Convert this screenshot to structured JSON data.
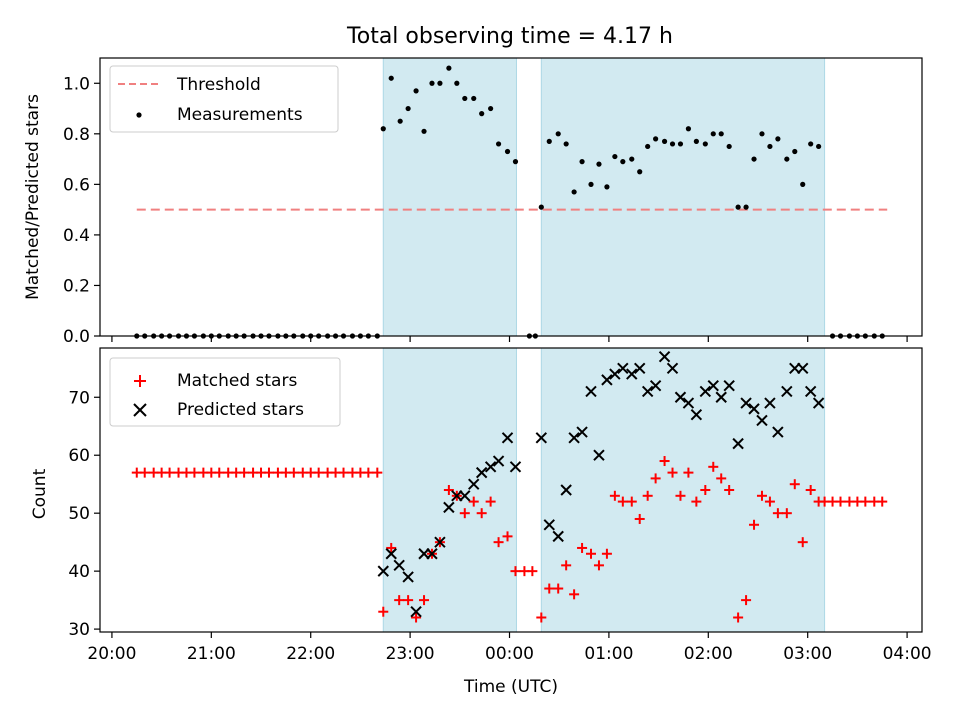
{
  "title": "Total observing time = 4.17 h",
  "xlabel": "Time (UTC)",
  "x_tick_labels": [
    "20:00",
    "21:00",
    "22:00",
    "23:00",
    "00:00",
    "01:00",
    "02:00",
    "03:00",
    "04:00"
  ],
  "colors": {
    "band": "#add8e6",
    "threshold": "#f08080",
    "matched": "#ff0000",
    "predicted": "#000000",
    "measurements": "#000000"
  },
  "chart_data": [
    {
      "type": "scatter",
      "ylabel": "Matched/Predicted stars",
      "xlim": [
        19.88,
        28.15
      ],
      "ylim": [
        0,
        1.1
      ],
      "y_ticks": [
        "0.0",
        "0.2",
        "0.4",
        "0.6",
        "0.8",
        "1.0"
      ],
      "legend": {
        "placement": "top-left",
        "entries": [
          "Threshold",
          "Measurements"
        ]
      },
      "shaded_intervals_hours": [
        [
          22.73,
          24.07
        ],
        [
          24.32,
          27.17
        ]
      ],
      "threshold": {
        "name": "Threshold",
        "x": [
          20.25,
          27.8
        ],
        "y": 0.5
      },
      "measurements": {
        "name": "Measurements",
        "x": [
          20.25,
          20.33,
          20.42,
          20.5,
          20.58,
          20.67,
          20.75,
          20.83,
          20.92,
          21.0,
          21.08,
          21.17,
          21.25,
          21.33,
          21.42,
          21.5,
          21.58,
          21.67,
          21.75,
          21.83,
          21.92,
          22.0,
          22.08,
          22.17,
          22.25,
          22.33,
          22.42,
          22.5,
          22.58,
          22.67,
          22.73,
          22.81,
          22.9,
          22.98,
          23.06,
          23.14,
          23.22,
          23.3,
          23.39,
          23.47,
          23.55,
          23.64,
          23.72,
          23.81,
          23.89,
          23.98,
          24.06,
          24.2,
          24.26,
          24.32,
          24.4,
          24.49,
          24.57,
          24.65,
          24.73,
          24.82,
          24.9,
          24.98,
          25.06,
          25.14,
          25.23,
          25.31,
          25.39,
          25.47,
          25.56,
          25.64,
          25.72,
          25.8,
          25.88,
          25.97,
          26.05,
          26.13,
          26.21,
          26.3,
          26.38,
          26.46,
          26.54,
          26.62,
          26.7,
          26.79,
          26.87,
          26.95,
          27.03,
          27.11,
          27.25,
          27.33,
          27.42,
          27.5,
          27.58,
          27.67,
          27.75
        ],
        "y": [
          0,
          0,
          0,
          0,
          0,
          0,
          0,
          0,
          0,
          0,
          0,
          0,
          0,
          0,
          0,
          0,
          0,
          0,
          0,
          0,
          0,
          0,
          0,
          0,
          0,
          0,
          0,
          0,
          0,
          0,
          0.82,
          1.02,
          0.85,
          0.9,
          0.97,
          0.81,
          1.0,
          1.0,
          1.06,
          1.0,
          0.94,
          0.94,
          0.88,
          0.9,
          0.76,
          0.73,
          0.69,
          0,
          0,
          0.51,
          0.77,
          0.8,
          0.76,
          0.57,
          0.69,
          0.6,
          0.68,
          0.59,
          0.71,
          0.69,
          0.7,
          0.65,
          0.75,
          0.78,
          0.77,
          0.76,
          0.76,
          0.82,
          0.77,
          0.76,
          0.8,
          0.8,
          0.75,
          0.51,
          0.51,
          0.7,
          0.8,
          0.75,
          0.78,
          0.7,
          0.73,
          0.6,
          0.76,
          0.75,
          0,
          0,
          0,
          0,
          0,
          0,
          0
        ]
      }
    },
    {
      "type": "scatter",
      "ylabel": "Count",
      "xlim": [
        19.88,
        28.15
      ],
      "ylim": [
        29.5,
        78.5
      ],
      "y_ticks": [
        "30",
        "40",
        "50",
        "60",
        "70"
      ],
      "legend": {
        "placement": "top-left",
        "entries": [
          "Matched stars",
          "Predicted stars"
        ]
      },
      "shaded_intervals_hours": [
        [
          22.73,
          24.07
        ],
        [
          24.32,
          27.17
        ]
      ],
      "matched": {
        "name": "Matched stars",
        "x": [
          20.25,
          20.33,
          20.42,
          20.5,
          20.58,
          20.67,
          20.75,
          20.83,
          20.92,
          21.0,
          21.08,
          21.17,
          21.25,
          21.33,
          21.42,
          21.5,
          21.58,
          21.67,
          21.75,
          21.83,
          21.92,
          22.0,
          22.08,
          22.17,
          22.25,
          22.33,
          22.42,
          22.5,
          22.58,
          22.67,
          22.73,
          22.81,
          22.89,
          22.98,
          23.06,
          23.14,
          23.22,
          23.3,
          23.39,
          23.47,
          23.55,
          23.64,
          23.72,
          23.81,
          23.89,
          23.98,
          24.06,
          24.15,
          24.23,
          24.32,
          24.4,
          24.49,
          24.57,
          24.65,
          24.73,
          24.82,
          24.9,
          24.98,
          25.06,
          25.14,
          25.23,
          25.31,
          25.39,
          25.47,
          25.56,
          25.64,
          25.72,
          25.8,
          25.88,
          25.97,
          26.05,
          26.13,
          26.21,
          26.3,
          26.38,
          26.46,
          26.54,
          26.62,
          26.7,
          26.79,
          26.87,
          26.95,
          27.03,
          27.11,
          27.17,
          27.25,
          27.33,
          27.42,
          27.5,
          27.58,
          27.67,
          27.75
        ],
        "y": [
          57,
          57,
          57,
          57,
          57,
          57,
          57,
          57,
          57,
          57,
          57,
          57,
          57,
          57,
          57,
          57,
          57,
          57,
          57,
          57,
          57,
          57,
          57,
          57,
          57,
          57,
          57,
          57,
          57,
          57,
          33,
          44,
          35,
          35,
          32,
          35,
          43,
          45,
          54,
          53,
          50,
          52,
          50,
          52,
          45,
          46,
          40,
          40,
          40,
          32,
          37,
          37,
          41,
          36,
          44,
          43,
          41,
          43,
          53,
          52,
          52,
          49,
          53,
          56,
          59,
          57,
          53,
          57,
          52,
          54,
          58,
          56,
          54,
          32,
          35,
          48,
          53,
          52,
          50,
          50,
          55,
          45,
          54,
          52,
          52,
          52,
          52,
          52,
          52,
          52,
          52,
          52
        ],
        "_note": ""
      },
      "predicted": {
        "name": "Predicted stars",
        "x": [
          22.73,
          22.81,
          22.89,
          22.98,
          23.06,
          23.14,
          23.22,
          23.3,
          23.39,
          23.47,
          23.55,
          23.64,
          23.72,
          23.81,
          23.89,
          23.98,
          24.06,
          24.32,
          24.4,
          24.49,
          24.57,
          24.65,
          24.73,
          24.82,
          24.9,
          24.98,
          25.06,
          25.14,
          25.23,
          25.31,
          25.39,
          25.47,
          25.56,
          25.64,
          25.72,
          25.8,
          25.88,
          25.97,
          26.05,
          26.13,
          26.21,
          26.3,
          26.38,
          26.46,
          26.54,
          26.62,
          26.7,
          26.79,
          26.87,
          26.95,
          27.03,
          27.11
        ],
        "y": [
          40,
          43,
          41,
          39,
          33,
          43,
          43,
          45,
          51,
          53,
          53,
          55,
          57,
          58,
          59,
          63,
          58,
          63,
          48,
          46,
          54,
          63,
          64,
          71,
          60,
          73,
          74,
          75,
          74,
          75,
          71,
          72,
          77,
          75,
          70,
          69,
          67,
          71,
          72,
          70,
          72,
          62,
          69,
          68,
          66,
          69,
          64,
          71,
          75,
          75,
          71,
          69
        ]
      }
    }
  ]
}
